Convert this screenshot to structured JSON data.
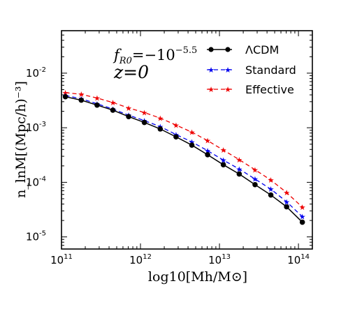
{
  "chart_data": {
    "type": "line",
    "xlabel": "log10[Mh/M⊙]",
    "ylabel": "n_lnM[(Mpc/h)⁻³]",
    "x_scale": "log",
    "y_scale": "log",
    "xlim": [
      100000000000.0,
      150000000000000.0
    ],
    "ylim": [
      6e-06,
      0.06
    ],
    "x_ticks": [
      {
        "value": 100000000000.0,
        "base": "10",
        "exp": "11"
      },
      {
        "value": 1000000000000.0,
        "base": "10",
        "exp": "12"
      },
      {
        "value": 10000000000000.0,
        "base": "10",
        "exp": "13"
      },
      {
        "value": 100000000000000.0,
        "base": "10",
        "exp": "14"
      }
    ],
    "y_ticks": [
      {
        "value": 0.01,
        "base": "10",
        "exp": "-2"
      },
      {
        "value": 0.001,
        "base": "10",
        "exp": "-3"
      },
      {
        "value": 0.0001,
        "base": "10",
        "exp": "-4"
      },
      {
        "value": 1e-05,
        "base": "10",
        "exp": "-5"
      }
    ],
    "annotations": {
      "line1_a": "f",
      "line1_sub": "R0",
      "line1_b": "=−10",
      "line1_sup": "−5.5",
      "line2": "z=0"
    },
    "legend_position": "top-right",
    "grid": false,
    "series": [
      {
        "name": "ΛCDM",
        "color": "#000000",
        "linestyle": "solid",
        "marker": "circle",
        "x": [
          112000000000.0,
          178000000000.0,
          282000000000.0,
          447000000000.0,
          708000000000.0,
          1120000000000.0,
          1780000000000.0,
          2820000000000.0,
          4470000000000.0,
          7080000000000.0,
          11200000000000.0,
          17800000000000.0,
          28200000000000.0,
          44700000000000.0,
          70800000000000.0,
          112000000000000.0
        ],
        "values": [
          0.0037,
          0.0032,
          0.0026,
          0.0021,
          0.0016,
          0.00125,
          0.00095,
          0.00068,
          0.00048,
          0.00032,
          0.00021,
          0.000142,
          9.06e-05,
          5.86e-05,
          3.56e-05,
          1.86e-05
        ]
      },
      {
        "name": "Standard",
        "color": "#0000ee",
        "linestyle": "dashed",
        "marker": "star",
        "x": [
          112000000000.0,
          178000000000.0,
          282000000000.0,
          447000000000.0,
          708000000000.0,
          1120000000000.0,
          1780000000000.0,
          2820000000000.0,
          4470000000000.0,
          7080000000000.0,
          11200000000000.0,
          17800000000000.0,
          28200000000000.0,
          44700000000000.0,
          70800000000000.0,
          112000000000000.0
        ],
        "values": [
          0.0039,
          0.0034,
          0.00275,
          0.0022,
          0.0017,
          0.00135,
          0.00105,
          0.00075,
          0.00055,
          0.00038,
          0.000255,
          0.000175,
          0.000115,
          7.5e-05,
          4.4e-05,
          2.35e-05
        ]
      },
      {
        "name": "Effective",
        "color": "#ee0000",
        "linestyle": "dashed",
        "marker": "star",
        "x": [
          112000000000.0,
          178000000000.0,
          282000000000.0,
          447000000000.0,
          708000000000.0,
          1120000000000.0,
          1780000000000.0,
          2820000000000.0,
          4470000000000.0,
          7080000000000.0,
          11200000000000.0,
          17800000000000.0,
          28200000000000.0,
          44700000000000.0,
          70800000000000.0,
          112000000000000.0
        ],
        "values": [
          0.0044,
          0.0041,
          0.0035,
          0.0029,
          0.0023,
          0.0019,
          0.0015,
          0.00112,
          0.00083,
          0.00058,
          0.00039,
          0.00026,
          0.00017,
          0.00011,
          6.5e-05,
          3.5e-05
        ]
      }
    ]
  }
}
